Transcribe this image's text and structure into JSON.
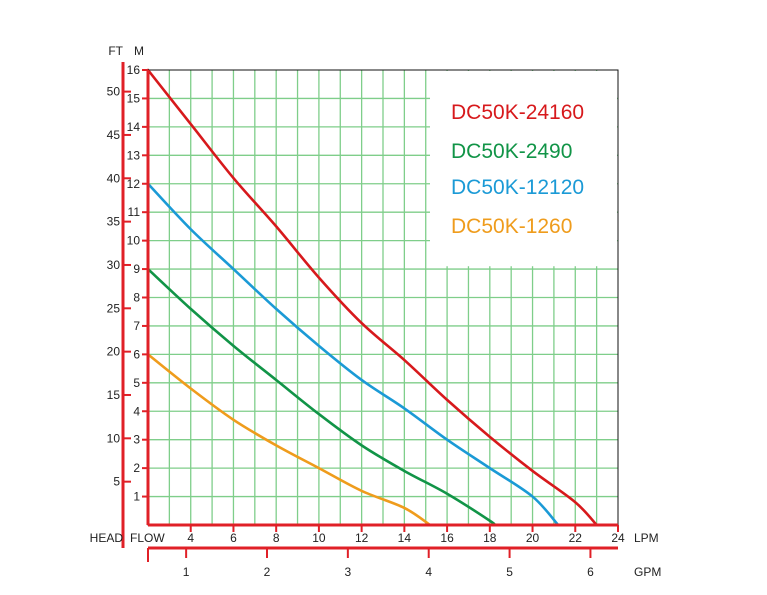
{
  "chart_data": {
    "type": "line",
    "title": "",
    "units": {
      "head_ft": "FT",
      "head_m": "M",
      "head": "HEAD",
      "flow": "FLOW",
      "lpm": "LPM",
      "gpm": "GPM"
    },
    "x_lpm": {
      "ticks": [
        4,
        6,
        8,
        10,
        12,
        14,
        16,
        18,
        20,
        22,
        24
      ],
      "range": [
        2,
        24
      ]
    },
    "x_gpm": {
      "ticks": [
        1,
        2,
        3,
        4,
        5,
        6
      ]
    },
    "y_m": {
      "ticks": [
        1,
        2,
        3,
        4,
        5,
        6,
        7,
        8,
        9,
        10,
        11,
        12,
        13,
        14,
        15,
        16
      ],
      "range": [
        0,
        16
      ]
    },
    "y_ft": {
      "ticks": [
        5,
        10,
        15,
        20,
        25,
        30,
        35,
        40,
        45,
        50
      ]
    },
    "grid": true,
    "legend_position": "top-right",
    "series": [
      {
        "name": "DC50K-24160",
        "color": "#d7191c",
        "x": [
          2,
          4,
          6,
          8,
          10,
          12,
          14,
          16,
          18,
          20,
          22,
          23
        ],
        "y": [
          16,
          14.1,
          12.2,
          10.5,
          8.7,
          7.1,
          5.8,
          4.4,
          3.1,
          1.9,
          0.8,
          0
        ]
      },
      {
        "name": "DC50K-2490",
        "color": "#119447",
        "x": [
          2,
          4,
          6,
          8,
          10,
          12,
          14,
          16,
          18,
          18.2
        ],
        "y": [
          9,
          7.6,
          6.3,
          5.1,
          3.9,
          2.8,
          1.9,
          1.1,
          0.15,
          0
        ]
      },
      {
        "name": "DC50K-12120",
        "color": "#1b9ad6",
        "x": [
          2,
          4,
          6,
          8,
          10,
          12,
          14,
          16,
          18,
          20,
          21.2
        ],
        "y": [
          12,
          10.4,
          9.0,
          7.6,
          6.3,
          5.1,
          4.1,
          3.0,
          2.0,
          1.0,
          0
        ]
      },
      {
        "name": "DC50K-1260",
        "color": "#ef9c1c",
        "x": [
          2,
          4,
          6,
          8,
          10,
          12,
          14,
          15.2
        ],
        "y": [
          6,
          4.8,
          3.7,
          2.8,
          2.0,
          1.2,
          0.6,
          0
        ]
      }
    ]
  }
}
